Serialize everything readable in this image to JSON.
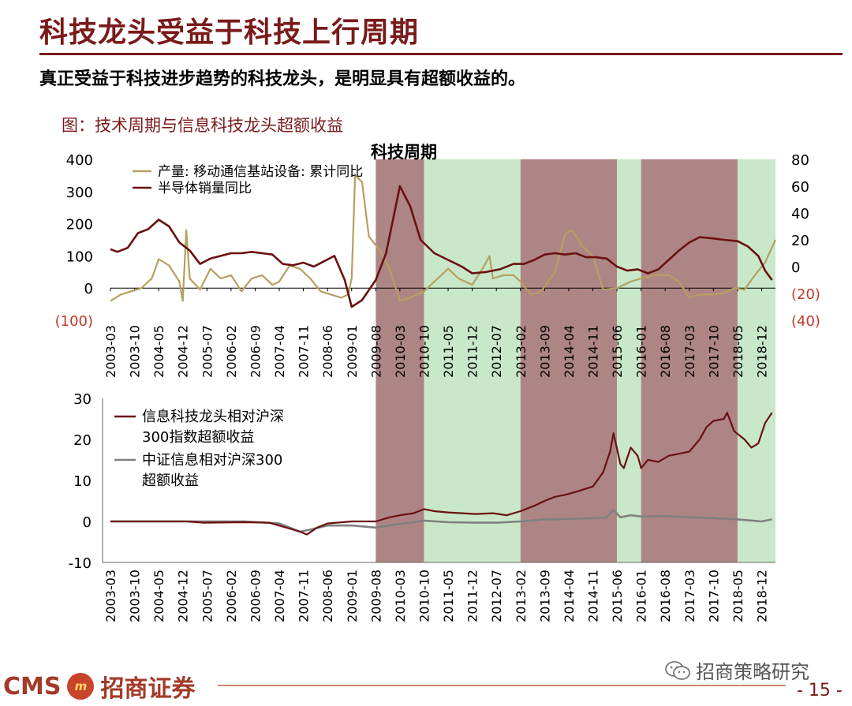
{
  "header": {
    "title": "科技龙头受益于科技上行周期",
    "subtitle": "真正受益于科技进步趋势的科技龙头，是明显具有超额收益的。",
    "figure_title": "图：技术周期与信息科技龙头超额收益"
  },
  "footer": {
    "logo_text": "CMS",
    "logo_mark": "m",
    "brand": "招商证券",
    "wechat": "招商策略研究",
    "page": "- 15 -"
  },
  "colors": {
    "shade_red": "#a07070",
    "shade_green": "#c9e8c9",
    "dark_red_line": "#6b1010",
    "khaki_line": "#b5a060",
    "gray_line": "#808080",
    "neg_label": "#c0392b"
  },
  "chart_data": [
    {
      "type": "line",
      "annotation": "科技周期",
      "x_tick_labels": [
        "2003-03",
        "2003-10",
        "2004-05",
        "2004-12",
        "2005-07",
        "2006-02",
        "2006-09",
        "2007-04",
        "2007-11",
        "2008-06",
        "2009-01",
        "2009-08",
        "2010-03",
        "2010-10",
        "2011-05",
        "2011-12",
        "2012-07",
        "2013-02",
        "2013-09",
        "2014-04",
        "2014-11",
        "2015-06",
        "2016-01",
        "2016-08",
        "2017-03",
        "2017-10",
        "2018-05",
        "2018-12"
      ],
      "left_axis": {
        "ylim": [
          -100,
          400
        ],
        "tick_labels": [
          "(100)",
          "0",
          "100",
          "200",
          "300",
          "400"
        ],
        "ticks": [
          -100,
          0,
          100,
          200,
          300,
          400
        ]
      },
      "right_axis": {
        "ylim": [
          -40,
          80
        ],
        "tick_labels": [
          "(40)",
          "(20)",
          "0",
          "20",
          "40",
          "60",
          "80"
        ],
        "ticks": [
          -40,
          -20,
          0,
          20,
          40,
          60,
          80
        ]
      },
      "shaded_periods": [
        {
          "start": "2009-08",
          "end": "2010-10",
          "kind": "up"
        },
        {
          "start": "2010-10",
          "end": "2013-02",
          "kind": "down"
        },
        {
          "start": "2013-02",
          "end": "2015-06",
          "kind": "up"
        },
        {
          "start": "2015-06",
          "end": "2016-01",
          "kind": "down"
        },
        {
          "start": "2016-01",
          "end": "2018-05",
          "kind": "up"
        },
        {
          "start": "2018-05",
          "end": "2019-04",
          "kind": "down"
        }
      ],
      "series": [
        {
          "name": "产量:移动通信基站设备:累计同比",
          "axis": "left",
          "points": [
            [
              "2003-03",
              -40
            ],
            [
              "2003-06",
              -20
            ],
            [
              "2003-09",
              -10
            ],
            [
              "2003-12",
              0
            ],
            [
              "2004-03",
              30
            ],
            [
              "2004-05",
              90
            ],
            [
              "2004-08",
              70
            ],
            [
              "2004-11",
              20
            ],
            [
              "2004-12",
              -40
            ],
            [
              "2005-01",
              180
            ],
            [
              "2005-02",
              30
            ],
            [
              "2005-05",
              -5
            ],
            [
              "2005-08",
              60
            ],
            [
              "2005-11",
              30
            ],
            [
              "2006-02",
              40
            ],
            [
              "2006-05",
              -10
            ],
            [
              "2006-08",
              30
            ],
            [
              "2006-11",
              40
            ],
            [
              "2007-02",
              10
            ],
            [
              "2007-04",
              20
            ],
            [
              "2007-07",
              70
            ],
            [
              "2007-10",
              60
            ],
            [
              "2008-01",
              30
            ],
            [
              "2008-04",
              -10
            ],
            [
              "2008-07",
              -20
            ],
            [
              "2008-10",
              -30
            ],
            [
              "2008-12",
              -20
            ],
            [
              "2009-01",
              30
            ],
            [
              "2009-02",
              350
            ],
            [
              "2009-04",
              330
            ],
            [
              "2009-06",
              160
            ],
            [
              "2009-09",
              120
            ],
            [
              "2009-12",
              60
            ],
            [
              "2010-03",
              -40
            ],
            [
              "2010-06",
              -30
            ],
            [
              "2010-10",
              -10
            ],
            [
              "2011-01",
              20
            ],
            [
              "2011-05",
              60
            ],
            [
              "2011-08",
              30
            ],
            [
              "2011-12",
              10
            ],
            [
              "2012-03",
              60
            ],
            [
              "2012-05",
              100
            ],
            [
              "2012-06",
              30
            ],
            [
              "2012-09",
              40
            ],
            [
              "2012-12",
              40
            ],
            [
              "2013-02",
              20
            ],
            [
              "2013-05",
              -20
            ],
            [
              "2013-08",
              -10
            ],
            [
              "2013-12",
              50
            ],
            [
              "2014-03",
              170
            ],
            [
              "2014-05",
              180
            ],
            [
              "2014-08",
              130
            ],
            [
              "2014-11",
              100
            ],
            [
              "2015-02",
              -5
            ],
            [
              "2015-06",
              0
            ],
            [
              "2015-10",
              20
            ],
            [
              "2016-01",
              30
            ],
            [
              "2016-05",
              40
            ],
            [
              "2016-09",
              40
            ],
            [
              "2016-12",
              20
            ],
            [
              "2017-03",
              -30
            ],
            [
              "2017-06",
              -20
            ],
            [
              "2017-10",
              -20
            ],
            [
              "2018-01",
              -15
            ],
            [
              "2018-04",
              0
            ],
            [
              "2018-07",
              -5
            ],
            [
              "2018-10",
              40
            ],
            [
              "2019-01",
              80
            ],
            [
              "2019-04",
              150
            ]
          ]
        },
        {
          "name": "半导体销量同比",
          "axis": "right",
          "points": [
            [
              "2003-03",
              13
            ],
            [
              "2003-05",
              11
            ],
            [
              "2003-08",
              14
            ],
            [
              "2003-11",
              25
            ],
            [
              "2004-02",
              28
            ],
            [
              "2004-05",
              35
            ],
            [
              "2004-08",
              30
            ],
            [
              "2004-11",
              18
            ],
            [
              "2005-02",
              12
            ],
            [
              "2005-05",
              2
            ],
            [
              "2005-08",
              6
            ],
            [
              "2005-11",
              8
            ],
            [
              "2006-02",
              10
            ],
            [
              "2006-05",
              10
            ],
            [
              "2006-08",
              11
            ],
            [
              "2006-11",
              10
            ],
            [
              "2007-02",
              9
            ],
            [
              "2007-05",
              2
            ],
            [
              "2007-08",
              1
            ],
            [
              "2007-11",
              3
            ],
            [
              "2008-02",
              0
            ],
            [
              "2008-05",
              4
            ],
            [
              "2008-08",
              8
            ],
            [
              "2008-11",
              -10
            ],
            [
              "2009-01",
              -30
            ],
            [
              "2009-04",
              -25
            ],
            [
              "2009-08",
              -10
            ],
            [
              "2009-11",
              10
            ],
            [
              "2010-03",
              60
            ],
            [
              "2010-06",
              45
            ],
            [
              "2010-09",
              20
            ],
            [
              "2011-01",
              10
            ],
            [
              "2011-05",
              5
            ],
            [
              "2011-09",
              0
            ],
            [
              "2011-12",
              -5
            ],
            [
              "2012-04",
              -4
            ],
            [
              "2012-08",
              -2
            ],
            [
              "2012-12",
              2
            ],
            [
              "2013-03",
              2
            ],
            [
              "2013-06",
              5
            ],
            [
              "2013-09",
              9
            ],
            [
              "2013-12",
              10
            ],
            [
              "2014-03",
              9
            ],
            [
              "2014-06",
              10
            ],
            [
              "2014-09",
              7
            ],
            [
              "2014-12",
              7
            ],
            [
              "2015-03",
              6
            ],
            [
              "2015-06",
              0
            ],
            [
              "2015-09",
              -3
            ],
            [
              "2015-12",
              -2
            ],
            [
              "2016-03",
              -5
            ],
            [
              "2016-06",
              -2
            ],
            [
              "2016-09",
              5
            ],
            [
              "2016-12",
              12
            ],
            [
              "2017-03",
              18
            ],
            [
              "2017-06",
              22
            ],
            [
              "2017-10",
              21
            ],
            [
              "2018-01",
              20
            ],
            [
              "2018-05",
              19
            ],
            [
              "2018-08",
              15
            ],
            [
              "2018-11",
              8
            ],
            [
              "2019-01",
              -3
            ],
            [
              "2019-03",
              -10
            ]
          ]
        }
      ]
    },
    {
      "type": "line",
      "x_tick_labels": [
        "2003-03",
        "2003-10",
        "2004-05",
        "2004-12",
        "2005-07",
        "2006-02",
        "2006-09",
        "2007-04",
        "2007-11",
        "2008-06",
        "2009-01",
        "2009-08",
        "2010-03",
        "2010-10",
        "2011-05",
        "2011-12",
        "2012-07",
        "2013-02",
        "2013-09",
        "2014-04",
        "2014-11",
        "2015-06",
        "2016-01",
        "2016-08",
        "2017-03",
        "2017-10",
        "2018-05",
        "2018-12"
      ],
      "ylim": [
        -10,
        30
      ],
      "y_tick_labels": [
        "-10",
        "0",
        "10",
        "20",
        "30"
      ],
      "y_ticks": [
        -10,
        0,
        10,
        20,
        30
      ],
      "series": [
        {
          "name": "信息科技龙头相对沪深300指数超额收益",
          "name_lines": [
            "信息科技龙头相对沪深",
            "300指数超额收益"
          ],
          "points": [
            [
              "2003-03",
              0
            ],
            [
              "2004-06",
              0
            ],
            [
              "2005-01",
              0
            ],
            [
              "2005-06",
              -0.3
            ],
            [
              "2006-06",
              -0.2
            ],
            [
              "2007-01",
              -0.3
            ],
            [
              "2007-06",
              -1.5
            ],
            [
              "2007-10",
              -2.5
            ],
            [
              "2007-12",
              -3.2
            ],
            [
              "2008-03",
              -1.5
            ],
            [
              "2008-06",
              -0.5
            ],
            [
              "2009-01",
              0
            ],
            [
              "2009-08",
              0
            ],
            [
              "2009-12",
              1
            ],
            [
              "2010-03",
              1.5
            ],
            [
              "2010-07",
              2
            ],
            [
              "2010-10",
              3
            ],
            [
              "2011-01",
              2.5
            ],
            [
              "2011-05",
              2.2
            ],
            [
              "2011-09",
              2
            ],
            [
              "2012-01",
              1.8
            ],
            [
              "2012-06",
              2
            ],
            [
              "2012-10",
              1.5
            ],
            [
              "2013-02",
              2.5
            ],
            [
              "2013-06",
              3.8
            ],
            [
              "2013-09",
              5
            ],
            [
              "2013-12",
              6
            ],
            [
              "2014-03",
              6.5
            ],
            [
              "2014-06",
              7.2
            ],
            [
              "2014-09",
              8
            ],
            [
              "2014-11",
              8.5
            ],
            [
              "2015-02",
              12
            ],
            [
              "2015-04",
              17
            ],
            [
              "2015-05",
              21.5
            ],
            [
              "2015-07",
              14
            ],
            [
              "2015-08",
              13
            ],
            [
              "2015-10",
              18
            ],
            [
              "2015-12",
              16
            ],
            [
              "2016-01",
              13
            ],
            [
              "2016-03",
              15
            ],
            [
              "2016-06",
              14.5
            ],
            [
              "2016-09",
              16
            ],
            [
              "2016-12",
              16.5
            ],
            [
              "2017-03",
              17
            ],
            [
              "2017-06",
              20
            ],
            [
              "2017-08",
              23
            ],
            [
              "2017-10",
              24.5
            ],
            [
              "2018-01",
              25
            ],
            [
              "2018-02",
              26.5
            ],
            [
              "2018-04",
              22
            ],
            [
              "2018-07",
              20
            ],
            [
              "2018-09",
              18
            ],
            [
              "2018-11",
              19
            ],
            [
              "2019-01",
              24
            ],
            [
              "2019-03",
              26.5
            ]
          ]
        },
        {
          "name": "中证信息相对沪深300超额收益",
          "name_lines": [
            "中证信息相对沪深300",
            "超额收益"
          ],
          "points": [
            [
              "2003-03",
              0
            ],
            [
              "2006-06",
              0
            ],
            [
              "2007-04",
              -0.5
            ],
            [
              "2007-10",
              -2.5
            ],
            [
              "2008-01",
              -2
            ],
            [
              "2008-06",
              -1
            ],
            [
              "2009-01",
              -1
            ],
            [
              "2009-08",
              -1.5
            ],
            [
              "2010-01",
              -0.8
            ],
            [
              "2010-07",
              -0.2
            ],
            [
              "2010-10",
              0.2
            ],
            [
              "2011-05",
              -0.2
            ],
            [
              "2012-01",
              -0.3
            ],
            [
              "2012-07",
              -0.3
            ],
            [
              "2013-02",
              0
            ],
            [
              "2013-09",
              0.5
            ],
            [
              "2014-04",
              0.6
            ],
            [
              "2014-11",
              0.8
            ],
            [
              "2015-03",
              1
            ],
            [
              "2015-05",
              2.8
            ],
            [
              "2015-07",
              1
            ],
            [
              "2015-10",
              1.5
            ],
            [
              "2016-01",
              1.2
            ],
            [
              "2016-08",
              1.3
            ],
            [
              "2017-03",
              1
            ],
            [
              "2017-10",
              0.8
            ],
            [
              "2018-05",
              0.5
            ],
            [
              "2018-12",
              0
            ],
            [
              "2019-03",
              0.5
            ]
          ]
        }
      ]
    }
  ]
}
